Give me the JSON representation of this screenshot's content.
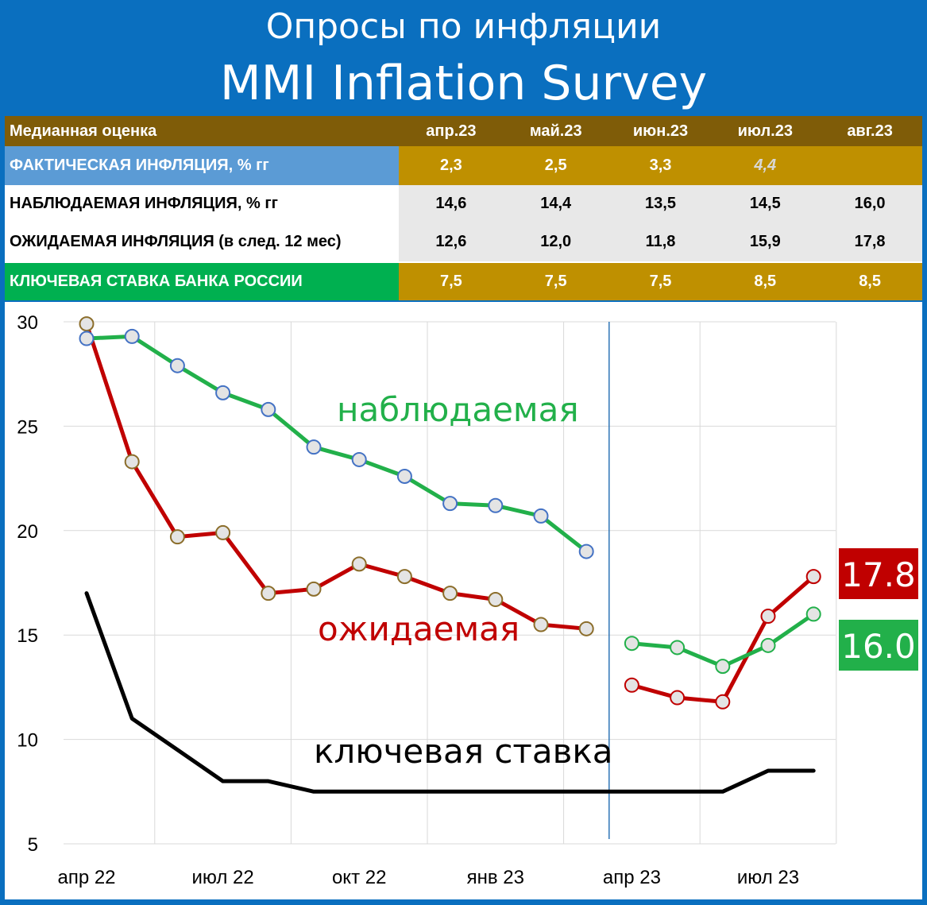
{
  "title_ru": "Опросы по инфляции",
  "title_en": "MMI Inflation Survey",
  "table": {
    "header_label": "Медианная оценка",
    "months": [
      "апр.23",
      "май.23",
      "июн.23",
      "июл.23",
      "авг.23"
    ],
    "rows": [
      {
        "label": "ФАКТИЧЕСКАЯ ИНФЛЯЦИЯ, % гг",
        "values": [
          "2,3",
          "2,5",
          "3,3",
          "4,4",
          ""
        ]
      },
      {
        "label": "НАБЛЮДАЕМАЯ ИНФЛЯЦИЯ, % гг",
        "values": [
          "14,6",
          "14,4",
          "13,5",
          "14,5",
          "16,0"
        ]
      },
      {
        "label": "ОЖИДАЕМАЯ ИНФЛЯЦИЯ (в след. 12 мес)",
        "values": [
          "12,6",
          "12,0",
          "11,8",
          "15,9",
          "17,8"
        ]
      },
      {
        "label": "КЛЮЧЕВАЯ СТАВКА БАНКА РОССИИ",
        "values": [
          "7,5",
          "7,5",
          "7,5",
          "8,5",
          "8,5"
        ]
      }
    ]
  },
  "chart_data": {
    "type": "line",
    "ylim": [
      5,
      30
    ],
    "yticks": [
      5,
      10,
      15,
      20,
      25,
      30
    ],
    "xlim": [
      0,
      16.5
    ],
    "xtick_labels": [
      "апр 22",
      "июл 22",
      "окт 22",
      "янв 23",
      "апр 23",
      "июл 23"
    ],
    "xtick_pos": [
      0,
      3,
      6,
      9,
      12,
      15
    ],
    "divider_x": 11.5,
    "series": [
      {
        "name": "наблюдаемая",
        "color": "#22b04a",
        "marker_edge": "#4472c4",
        "segments": [
          {
            "x": [
              0,
              1,
              2,
              3,
              4,
              5,
              6,
              7,
              8,
              9,
              10,
              11
            ],
            "y": [
              29.2,
              29.3,
              27.9,
              26.6,
              25.8,
              24.0,
              23.4,
              22.6,
              21.3,
              21.2,
              20.7,
              19.0
            ]
          },
          {
            "x": [
              12,
              13,
              14,
              15,
              16
            ],
            "y": [
              14.6,
              14.4,
              13.5,
              14.5,
              16.0
            ],
            "marker_edge": "#22b04a"
          }
        ]
      },
      {
        "name": "ожидаемая",
        "color": "#c00000",
        "marker_edge": "#8b6d2a",
        "segments": [
          {
            "x": [
              0,
              1,
              2,
              3,
              4,
              5,
              6,
              7,
              8,
              9,
              10,
              11
            ],
            "y": [
              29.9,
              23.3,
              19.7,
              19.9,
              17.0,
              17.2,
              18.4,
              17.8,
              17.0,
              16.7,
              15.5,
              15.3
            ]
          },
          {
            "x": [
              12,
              13,
              14,
              15,
              16
            ],
            "y": [
              12.6,
              12.0,
              11.8,
              15.9,
              17.8
            ],
            "marker_edge": "#c00000"
          }
        ]
      },
      {
        "name": "ключевая ставка",
        "color": "#000000",
        "segments": [
          {
            "x": [
              0,
              1,
              2,
              3,
              4,
              5,
              6,
              7,
              8,
              9,
              10,
              11,
              12,
              13,
              14,
              15,
              16
            ],
            "y": [
              17.0,
              11.0,
              9.5,
              8.0,
              8.0,
              7.5,
              7.5,
              7.5,
              7.5,
              7.5,
              7.5,
              7.5,
              7.5,
              7.5,
              7.5,
              8.5,
              8.5
            ]
          }
        ]
      }
    ],
    "labels": {
      "observed": "наблюдаемая",
      "expected": "ожидаемая",
      "key_rate": "ключевая ставка"
    },
    "callouts": [
      {
        "text": "17.8",
        "value": 17.8,
        "color": "#c00000"
      },
      {
        "text": "16.0",
        "value": 16.0,
        "color": "#22b04a"
      }
    ]
  }
}
